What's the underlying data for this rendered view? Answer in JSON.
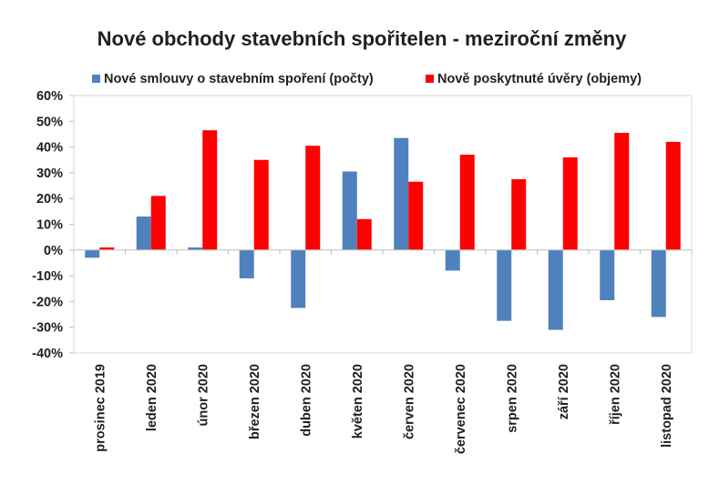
{
  "chart_data": {
    "type": "bar",
    "title": "Nové obchody stavebních spořitelen - meziroční změny",
    "xlabel": "",
    "ylabel": "",
    "ylim": [
      -40,
      60
    ],
    "yticks": [
      "60%",
      "50%",
      "40%",
      "30%",
      "20%",
      "10%",
      "0%",
      "-10%",
      "-20%",
      "-30%",
      "-40%"
    ],
    "grid": false,
    "legend_position": "top",
    "categories": [
      "prosinec 2019",
      "leden 2020",
      "únor 2020",
      "březen 2020",
      "duben 2020",
      "květen 2020",
      "červen 2020",
      "červenec 2020",
      "srpen 2020",
      "září 2020",
      "říjen 2020",
      "listopad 2020"
    ],
    "series": [
      {
        "name": "Nové smlouvy o stavebním spoření (počty)",
        "color": "#4f81bd",
        "values": [
          -3,
          13,
          1,
          -11,
          -22.5,
          30.5,
          43.5,
          -8,
          -27.5,
          -31,
          -19.5,
          -26
        ]
      },
      {
        "name": "Nově poskytnuté úvěry (objemy)",
        "color": "#ff0000",
        "values": [
          1,
          21,
          46.5,
          35,
          40.5,
          12,
          26.5,
          37,
          27.5,
          36,
          45.5,
          42
        ]
      }
    ]
  }
}
